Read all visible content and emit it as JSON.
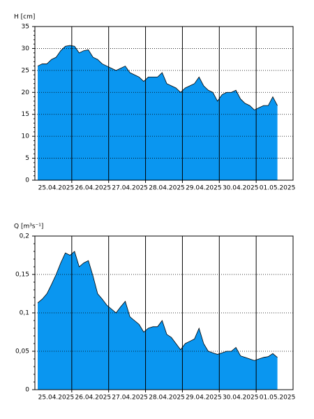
{
  "chart_data": [
    {
      "type": "area",
      "y_label": "H [cm]",
      "color": "#0a96f0",
      "categories": [
        "",
        "",
        "",
        "",
        "25.04.2025",
        "",
        "",
        "",
        "",
        "",
        "",
        "",
        "26.04.2025",
        "",
        "",
        "",
        "",
        "",
        "",
        "",
        "27.04.2025",
        "",
        "",
        "",
        "",
        "",
        "",
        "",
        "28.04.2025",
        "",
        "",
        "",
        "",
        "",
        "",
        "",
        "29.04.2025",
        "",
        "",
        "",
        "",
        "",
        "",
        "",
        "30.04.2025",
        "",
        "",
        "",
        "",
        "",
        "",
        "",
        "01.05.2025",
        "",
        "",
        ""
      ],
      "values": [
        26,
        26.5,
        26.5,
        27.5,
        28,
        29.5,
        30.5,
        30.7,
        30.5,
        29,
        29.5,
        29.7,
        28,
        27.5,
        26.5,
        26,
        25.5,
        25,
        25.5,
        26,
        24.5,
        24,
        23.5,
        22.5,
        23.5,
        23.5,
        23.5,
        24.5,
        22,
        21.5,
        21,
        20,
        21,
        21.5,
        22,
        23.5,
        21.5,
        20.5,
        20,
        18,
        19.5,
        20,
        20,
        20.5,
        18.5,
        17.5,
        17,
        16,
        16.5,
        17,
        17,
        19,
        17,
        null,
        null,
        null
      ],
      "ylim": [
        0,
        35
      ],
      "yticks": [
        0,
        5,
        10,
        15,
        20,
        25,
        30,
        35
      ],
      "grid": true
    },
    {
      "type": "area",
      "y_label": "Q [m³s⁻¹]",
      "color": "#0a96f0",
      "categories": [
        "",
        "",
        "",
        "",
        "25.04.2025",
        "",
        "",
        "",
        "",
        "",
        "",
        "",
        "26.04.2025",
        "",
        "",
        "",
        "",
        "",
        "",
        "",
        "27.04.2025",
        "",
        "",
        "",
        "",
        "",
        "",
        "",
        "28.04.2025",
        "",
        "",
        "",
        "",
        "",
        "",
        "",
        "29.04.2025",
        "",
        "",
        "",
        "",
        "",
        "",
        "",
        "30.04.2025",
        "",
        "",
        "",
        "",
        "",
        "",
        "",
        "01.05.2025",
        "",
        "",
        ""
      ],
      "values": [
        0.113,
        0.118,
        0.125,
        0.137,
        0.15,
        0.165,
        0.178,
        0.175,
        0.18,
        0.16,
        0.165,
        0.168,
        0.148,
        0.125,
        0.118,
        0.11,
        0.105,
        0.1,
        0.108,
        0.115,
        0.095,
        0.09,
        0.085,
        0.075,
        0.08,
        0.082,
        0.082,
        0.09,
        0.072,
        0.068,
        0.06,
        0.052,
        0.06,
        0.063,
        0.066,
        0.08,
        0.06,
        0.05,
        0.048,
        0.046,
        0.048,
        0.05,
        0.05,
        0.055,
        0.044,
        0.042,
        0.04,
        0.038,
        0.04,
        0.042,
        0.043,
        0.047,
        0.042,
        null,
        null,
        null
      ],
      "ylim": [
        0,
        0.2
      ],
      "yticks": [
        0,
        {
          "value": 0.05,
          "label": "0,05"
        },
        {
          "value": 0.1,
          "label": "0,1"
        },
        {
          "value": 0.15,
          "label": "0,15"
        },
        {
          "value": 0.2,
          "label": "0,2"
        }
      ],
      "grid": true
    }
  ]
}
